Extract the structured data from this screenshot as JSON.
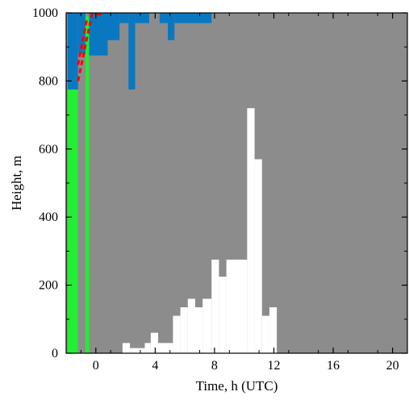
{
  "chart_data": {
    "type": "heatmap",
    "xlabel": "Time, h (UTC)",
    "ylabel": "Height, m",
    "xlim": [
      -2,
      21
    ],
    "ylim": [
      0,
      1000
    ],
    "x_ticks": [
      0,
      4,
      8,
      12,
      16,
      20
    ],
    "y_ticks": [
      0,
      200,
      400,
      600,
      800,
      1000
    ],
    "colors": {
      "background": "#8c8c8c",
      "white_region": "#ffffff",
      "blue_region": "#0a78c0",
      "green_region": "#22ee33",
      "hatch": "#ff0000"
    },
    "green_band": {
      "x": [
        -1.9,
        -1.2
      ],
      "y": [
        0,
        775
      ]
    },
    "green_strip": {
      "x": [
        -0.7,
        -0.45
      ],
      "y": [
        0,
        990
      ]
    },
    "blue_regions": [
      {
        "x": [
          -1.9,
          -1.2
        ],
        "y": [
          775,
          1000
        ]
      },
      {
        "x": [
          -1.2,
          -0.7
        ],
        "y": [
          880,
          1000
        ]
      },
      {
        "x": [
          -0.45,
          0.8
        ],
        "y": [
          875,
          1000
        ]
      },
      {
        "x": [
          0.8,
          1.6
        ],
        "y": [
          920,
          1000
        ]
      },
      {
        "x": [
          1.6,
          2.2
        ],
        "y": [
          970,
          1000
        ]
      },
      {
        "x": [
          2.2,
          2.65
        ],
        "y": [
          775,
          1000
        ]
      },
      {
        "x": [
          2.65,
          3.6
        ],
        "y": [
          970,
          1000
        ]
      },
      {
        "x": [
          4.3,
          4.85
        ],
        "y": [
          970,
          1000
        ]
      },
      {
        "x": [
          4.85,
          5.3
        ],
        "y": [
          920,
          1000
        ]
      },
      {
        "x": [
          5.3,
          7.8
        ],
        "y": [
          970,
          1000
        ]
      }
    ],
    "white_columns": [
      {
        "x": [
          1.8,
          2.3
        ],
        "y": [
          0,
          30
        ]
      },
      {
        "x": [
          2.3,
          3.3
        ],
        "y": [
          0,
          15
        ]
      },
      {
        "x": [
          3.3,
          3.7
        ],
        "y": [
          0,
          30
        ]
      },
      {
        "x": [
          3.7,
          4.2
        ],
        "y": [
          0,
          60
        ]
      },
      {
        "x": [
          4.2,
          5.2
        ],
        "y": [
          0,
          30
        ]
      },
      {
        "x": [
          5.2,
          5.7
        ],
        "y": [
          0,
          110
        ]
      },
      {
        "x": [
          5.7,
          6.2
        ],
        "y": [
          0,
          135
        ]
      },
      {
        "x": [
          6.2,
          6.7
        ],
        "y": [
          0,
          160
        ]
      },
      {
        "x": [
          6.7,
          7.2
        ],
        "y": [
          0,
          135
        ]
      },
      {
        "x": [
          7.2,
          7.8
        ],
        "y": [
          0,
          160
        ]
      },
      {
        "x": [
          7.8,
          8.3
        ],
        "y": [
          0,
          275
        ]
      },
      {
        "x": [
          8.3,
          8.8
        ],
        "y": [
          0,
          225
        ]
      },
      {
        "x": [
          8.8,
          10.2
        ],
        "y": [
          0,
          275
        ]
      },
      {
        "x": [
          10.2,
          10.7
        ],
        "y": [
          0,
          720
        ]
      },
      {
        "x": [
          10.7,
          11.2
        ],
        "y": [
          0,
          570
        ]
      },
      {
        "x": [
          11.2,
          11.7
        ],
        "y": [
          0,
          110
        ]
      },
      {
        "x": [
          11.7,
          12.2
        ],
        "y": [
          0,
          135
        ]
      }
    ],
    "hatched_region": {
      "x": [
        -1.2,
        0.5
      ],
      "y": [
        800,
        1000
      ]
    }
  }
}
